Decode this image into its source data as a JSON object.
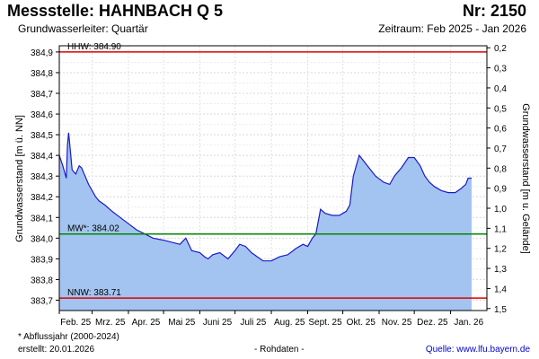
{
  "header": {
    "title": "Messstelle: HAHNBACH Q 5",
    "station_number": "Nr: 2150",
    "aquifer": "Grundwasserleiter: Quartär",
    "period": "Zeitraum: Feb 2025 - Jan 2026"
  },
  "footer": {
    "note": "* Abflussjahr (2000-2024)",
    "created": "erstellt:  20.01.2026",
    "raw_data": "- Rohdaten -",
    "source": "Quelle: www.lfu.bayern.de"
  },
  "chart_data": {
    "type": "area",
    "ylabel": "Grundwasserstand [m ü. NN]",
    "y2label": "Grundwasserstand [m u. Gelände]",
    "ylim": [
      383.65,
      384.93
    ],
    "y2lim": [
      1.51,
      0.19
    ],
    "yticks": [
      "383,7",
      "383,8",
      "383,9",
      "384,0",
      "384,1",
      "384,2",
      "384,3",
      "384,4",
      "384,5",
      "384,6",
      "384,7",
      "384,8",
      "384,9"
    ],
    "y2ticks": [
      "0,2",
      "0,3",
      "0,4",
      "0,5",
      "0,6",
      "0,7",
      "0,8",
      "0,9",
      "1,0",
      "1,1",
      "1,2",
      "1,3",
      "1,4",
      "1,5"
    ],
    "xlim": [
      "2025-02-01",
      "2026-01-31"
    ],
    "xticks": [
      "Feb. 25",
      "Mrz. 25",
      "Apr. 25",
      "Mai 25",
      "Juni 25",
      "Juli 25",
      "Aug. 25",
      "Sept. 25",
      "Okt. 25",
      "Nov. 25",
      "Dez. 25",
      "Jan. 26"
    ],
    "grid": true,
    "area_color": "#a3c4f0",
    "line_color": "#1a1acc",
    "reference_lines": [
      {
        "label": "HHW: 384.90",
        "value": 384.9,
        "color": "#dd0000"
      },
      {
        "label": "MW*: 384.02",
        "value": 384.02,
        "color": "#008800"
      },
      {
        "label": "NNW: 383.71",
        "value": 383.71,
        "color": "#dd0000"
      }
    ],
    "series": [
      {
        "x": [
          "2025-02-01",
          "2025-02-04",
          "2025-02-07",
          "2025-02-08",
          "2025-02-09",
          "2025-02-10",
          "2025-02-12",
          "2025-02-15",
          "2025-02-18",
          "2025-02-20",
          "2025-02-23",
          "2025-02-26",
          "2025-03-01",
          "2025-03-04",
          "2025-03-07",
          "2025-03-12",
          "2025-03-18",
          "2025-03-25",
          "2025-04-01",
          "2025-04-08",
          "2025-04-15",
          "2025-04-22",
          "2025-05-01",
          "2025-05-08",
          "2025-05-15",
          "2025-05-20",
          "2025-05-25",
          "2025-06-01",
          "2025-06-05",
          "2025-06-08",
          "2025-06-12",
          "2025-06-18",
          "2025-06-25",
          "2025-07-01",
          "2025-07-05",
          "2025-07-10",
          "2025-07-15",
          "2025-07-20",
          "2025-07-25",
          "2025-08-01",
          "2025-08-08",
          "2025-08-15",
          "2025-08-22",
          "2025-08-28",
          "2025-09-01",
          "2025-09-05",
          "2025-09-08",
          "2025-09-12",
          "2025-09-16",
          "2025-09-22",
          "2025-09-28",
          "2025-10-01",
          "2025-10-04",
          "2025-10-07",
          "2025-10-10",
          "2025-10-15",
          "2025-10-22",
          "2025-10-29",
          "2025-11-05",
          "2025-11-10",
          "2025-11-14",
          "2025-11-20",
          "2025-11-26",
          "2025-12-01",
          "2025-12-06",
          "2025-12-10",
          "2025-12-14",
          "2025-12-18",
          "2025-12-24",
          "2025-12-30",
          "2026-01-05",
          "2026-01-10",
          "2026-01-14",
          "2026-01-16",
          "2026-01-19"
        ],
        "values": [
          384.4,
          384.35,
          384.29,
          384.45,
          384.51,
          384.45,
          384.33,
          384.31,
          384.35,
          384.34,
          384.3,
          384.26,
          384.23,
          384.2,
          384.18,
          384.16,
          384.13,
          384.1,
          384.07,
          384.04,
          384.02,
          384.0,
          383.99,
          383.98,
          383.97,
          384.0,
          383.94,
          383.93,
          383.91,
          383.9,
          383.92,
          383.93,
          383.9,
          383.94,
          383.97,
          383.96,
          383.93,
          383.91,
          383.89,
          383.89,
          383.91,
          383.92,
          383.95,
          383.97,
          383.96,
          384.0,
          384.02,
          384.14,
          384.12,
          384.11,
          384.11,
          384.12,
          384.13,
          384.16,
          384.3,
          384.4,
          384.35,
          384.3,
          384.27,
          384.26,
          384.3,
          384.34,
          384.39,
          384.39,
          384.35,
          384.3,
          384.27,
          384.25,
          384.23,
          384.22,
          384.22,
          384.24,
          384.26,
          384.29,
          384.29
        ]
      }
    ]
  }
}
